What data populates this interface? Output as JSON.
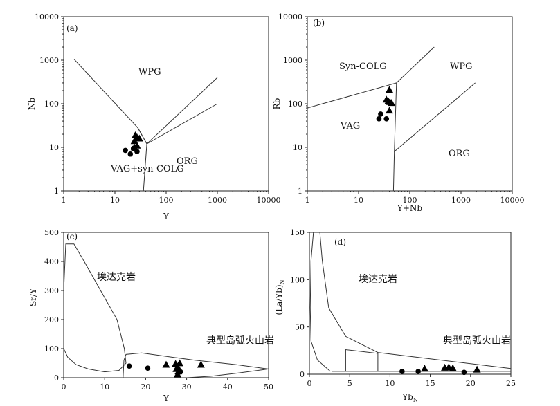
{
  "chart_data": [
    {
      "panel": "(a)",
      "type": "scatter",
      "xscale": "log",
      "yscale": "log",
      "xlabel": "Y",
      "ylabel": "Nb",
      "xlim": [
        1,
        10000
      ],
      "ylim": [
        1,
        10000
      ],
      "xticks": [
        "1",
        "10",
        "100",
        "1000",
        "10000"
      ],
      "yticks": [
        "1",
        "10",
        "100",
        "1000",
        "10000"
      ],
      "regions": [
        "WPG",
        "ORG",
        "VAG+syn-COLG"
      ],
      "boundaries": [
        [
          [
            1.6,
            1050
          ],
          [
            28,
            28
          ],
          [
            42,
            12
          ],
          [
            1000,
            400
          ]
        ],
        [
          [
            28,
            28
          ],
          [
            42,
            12
          ]
        ],
        [
          [
            42,
            12
          ],
          [
            36,
            1
          ]
        ],
        [
          [
            42,
            12
          ],
          [
            1000,
            100
          ]
        ]
      ],
      "series": [
        {
          "name": "triangles",
          "marker": "triangle",
          "points": [
            [
              25,
              19
            ],
            [
              27,
              17
            ],
            [
              30,
              16
            ],
            [
              24,
              14
            ],
            [
              27,
              11
            ],
            [
              24,
              10
            ]
          ]
        },
        {
          "name": "circles",
          "marker": "circle",
          "points": [
            [
              16,
              8.5
            ],
            [
              20,
              7
            ],
            [
              23,
              9.5
            ],
            [
              27,
              8
            ]
          ]
        }
      ]
    },
    {
      "panel": "(b)",
      "type": "scatter",
      "xscale": "log",
      "yscale": "log",
      "xlabel": "Y+Nb",
      "ylabel": "Rb",
      "xlim": [
        1,
        10000
      ],
      "ylim": [
        1,
        10000
      ],
      "xticks": [
        "1",
        "10",
        "100",
        "1000",
        "10000"
      ],
      "yticks": [
        "1",
        "10",
        "100",
        "1000",
        "10000"
      ],
      "regions": [
        "Syn-COLG",
        "WPG",
        "VAG",
        "ORG"
      ],
      "boundaries": [
        [
          [
            1,
            80
          ],
          [
            55,
            300
          ],
          [
            300,
            2000
          ]
        ],
        [
          [
            55,
            300
          ],
          [
            50,
            8
          ],
          [
            1900,
            300
          ]
        ],
        [
          [
            50,
            8
          ],
          [
            48,
            1
          ]
        ]
      ],
      "series": [
        {
          "name": "triangles",
          "marker": "triangle",
          "points": [
            [
              40,
              210
            ],
            [
              35,
              125
            ],
            [
              38,
              115
            ],
            [
              41,
              110
            ],
            [
              44,
              105
            ],
            [
              40,
              70
            ]
          ]
        },
        {
          "name": "circles",
          "marker": "circle",
          "points": [
            [
              27,
              58
            ],
            [
              25,
              45
            ],
            [
              35,
              45
            ]
          ]
        }
      ]
    },
    {
      "panel": "(c)",
      "type": "scatter",
      "xlabel": "Y",
      "ylabel": "Sr/Y",
      "xlim": [
        0,
        50
      ],
      "ylim": [
        0,
        500
      ],
      "xticks": [
        "0",
        "10",
        "20",
        "30",
        "40",
        "50"
      ],
      "yticks": [
        "0",
        "100",
        "200",
        "300",
        "400",
        "500"
      ],
      "regions": [
        "埃达克岩",
        "典型岛弧火山岩"
      ],
      "boundaries": [
        [
          [
            0,
            0
          ],
          [
            -0.3,
            200
          ],
          [
            0,
            300
          ],
          [
            0.5,
            460
          ],
          [
            2.5,
            460
          ],
          [
            5,
            400
          ],
          [
            9,
            300
          ],
          [
            13,
            200
          ],
          [
            14.8,
            100
          ],
          [
            15.2,
            50
          ],
          [
            13.5,
            25
          ],
          [
            10,
            20
          ],
          [
            6,
            30
          ],
          [
            3,
            45
          ],
          [
            1,
            70
          ],
          [
            0,
            100
          ]
        ],
        [
          [
            14.5,
            0
          ],
          [
            14.7,
            60
          ],
          [
            15.2,
            80
          ],
          [
            19,
            85
          ],
          [
            32,
            60
          ],
          [
            42,
            45
          ],
          [
            50,
            30
          ],
          [
            42,
            15
          ],
          [
            36,
            5
          ],
          [
            30,
            0
          ]
        ]
      ],
      "series": [
        {
          "name": "triangles",
          "marker": "triangle",
          "points": [
            [
              25,
              45
            ],
            [
              27.3,
              48
            ],
            [
              28.3,
              50
            ],
            [
              27.8,
              38
            ],
            [
              33.5,
              45
            ],
            [
              27.5,
              30
            ],
            [
              28,
              22
            ],
            [
              27.8,
              12
            ]
          ]
        },
        {
          "name": "circles",
          "marker": "circle",
          "points": [
            [
              16,
              40
            ],
            [
              20.5,
              33
            ],
            [
              28.5,
              20
            ]
          ]
        }
      ]
    },
    {
      "panel": "(d)",
      "type": "scatter",
      "xlabel": "YbN",
      "ylabel": "(La/Yb)N",
      "xlim": [
        0,
        25
      ],
      "ylim": [
        0,
        150
      ],
      "xticks": [
        "0",
        "5",
        "10",
        "15",
        "20",
        "25"
      ],
      "yticks": [
        "0",
        "50",
        "100",
        "150"
      ],
      "regions": [
        "埃达克岩",
        "典型岛弧火山岩"
      ],
      "boundaries": [
        [
          [
            0.5,
            150
          ],
          [
            0.2,
            120
          ],
          [
            0.1,
            70
          ],
          [
            0.2,
            35
          ],
          [
            1,
            15
          ],
          [
            2.6,
            3
          ]
        ],
        [
          [
            1.3,
            150
          ],
          [
            1.6,
            120
          ],
          [
            2.4,
            70
          ],
          [
            4.5,
            40
          ],
          [
            8.5,
            23
          ],
          [
            25,
            6
          ]
        ],
        [
          [
            2.8,
            3
          ],
          [
            25,
            3
          ]
        ],
        [
          [
            4.5,
            3
          ],
          [
            4.5,
            26
          ],
          [
            8.5,
            22
          ],
          [
            8.5,
            3
          ]
        ]
      ],
      "series": [
        {
          "name": "triangles",
          "marker": "triangle",
          "points": [
            [
              14.3,
              6
            ],
            [
              16.8,
              7
            ],
            [
              17.3,
              7.5
            ],
            [
              17.8,
              6.5
            ],
            [
              20.8,
              5
            ]
          ]
        },
        {
          "name": "circles",
          "marker": "circle",
          "points": [
            [
              11.5,
              3
            ],
            [
              13.5,
              3
            ],
            [
              19.2,
              2
            ]
          ]
        }
      ]
    }
  ]
}
